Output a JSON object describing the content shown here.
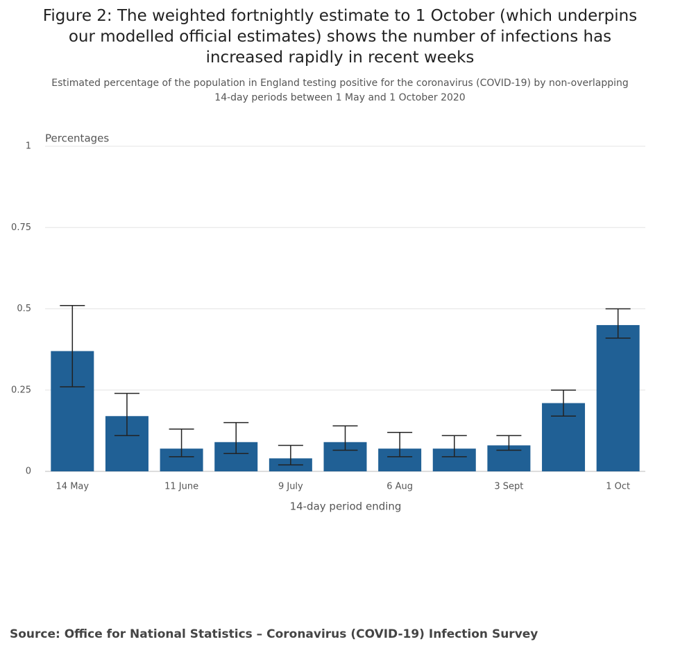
{
  "chart_data": {
    "type": "bar",
    "title": "Figure 2: The weighted fortnightly estimate to 1 October (which underpins our modelled official estimates) shows the number of infections has increased rapidly in recent weeks",
    "subtitle": "Estimated percentage of the population in England testing positive for the coronavirus (COVID-19) by non-overlapping 14-day periods between 1 May and 1 October 2020",
    "y_label": "Percentages",
    "x_label": "14-day period ending",
    "source": "Source: Office for National Statistics – Coronavirus (COVID-19) Infection Survey",
    "categories": [
      "14 May",
      null,
      "11 June",
      null,
      "9 July",
      null,
      "6 Aug",
      null,
      "3 Sept",
      null,
      "1 Oct"
    ],
    "series": [
      {
        "color": "#206095",
        "values": [
          0.37,
          0.17,
          0.07,
          0.09,
          0.04,
          0.09,
          0.07,
          0.07,
          0.08,
          0.21,
          0.45
        ],
        "lower": [
          0.26,
          0.11,
          0.045,
          0.055,
          0.02,
          0.065,
          0.045,
          0.045,
          0.065,
          0.17,
          0.41
        ],
        "upper": [
          0.51,
          0.24,
          0.13,
          0.15,
          0.08,
          0.14,
          0.12,
          0.11,
          0.11,
          0.25,
          0.5
        ]
      }
    ],
    "ylim": [
      0,
      1
    ],
    "yticks": [
      0,
      0.25,
      0.5,
      0.75,
      1
    ],
    "grid": true
  }
}
